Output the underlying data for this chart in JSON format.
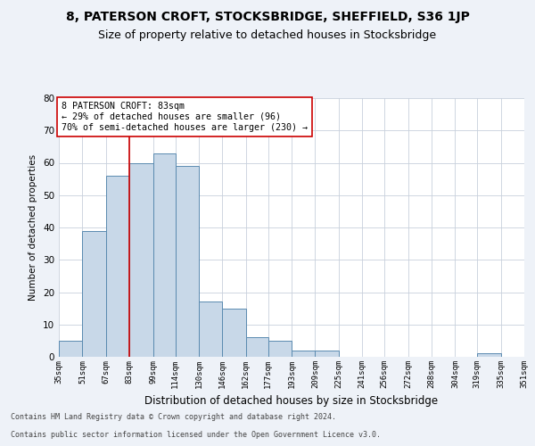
{
  "title": "8, PATERSON CROFT, STOCKSBRIDGE, SHEFFIELD, S36 1JP",
  "subtitle": "Size of property relative to detached houses in Stocksbridge",
  "xlabel": "Distribution of detached houses by size in Stocksbridge",
  "ylabel": "Number of detached properties",
  "footer_line1": "Contains HM Land Registry data © Crown copyright and database right 2024.",
  "footer_line2": "Contains public sector information licensed under the Open Government Licence v3.0.",
  "bin_edges": [
    35,
    51,
    67,
    83,
    99,
    114,
    130,
    146,
    162,
    177,
    193,
    209,
    225,
    241,
    256,
    272,
    288,
    304,
    319,
    335,
    351
  ],
  "bar_heights": [
    5,
    39,
    56,
    60,
    63,
    59,
    17,
    15,
    6,
    5,
    2,
    2,
    0,
    0,
    0,
    0,
    0,
    0,
    1,
    0
  ],
  "bar_color": "#c8d8e8",
  "bar_edge_color": "#5a8ab0",
  "vline_x": 83,
  "vline_color": "#cc0000",
  "annotation_text": "8 PATERSON CROFT: 83sqm\n← 29% of detached houses are smaller (96)\n70% of semi-detached houses are larger (230) →",
  "annotation_box_color": "white",
  "annotation_box_edge": "#cc0000",
  "ylim": [
    0,
    80
  ],
  "yticks": [
    0,
    10,
    20,
    30,
    40,
    50,
    60,
    70,
    80
  ],
  "bg_color": "#eef2f8",
  "plot_bg_color": "white",
  "grid_color": "#c8d0dc",
  "title_fontsize": 10,
  "subtitle_fontsize": 9,
  "tick_labels": [
    "35sqm",
    "51sqm",
    "67sqm",
    "83sqm",
    "99sqm",
    "114sqm",
    "130sqm",
    "146sqm",
    "162sqm",
    "177sqm",
    "193sqm",
    "209sqm",
    "225sqm",
    "241sqm",
    "256sqm",
    "272sqm",
    "288sqm",
    "304sqm",
    "319sqm",
    "335sqm",
    "351sqm"
  ]
}
